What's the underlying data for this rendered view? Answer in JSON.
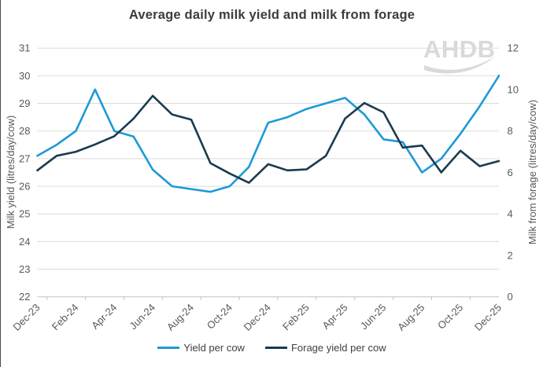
{
  "title": "Average daily milk yield and milk from forage",
  "watermark": {
    "logo_text": "AHDB"
  },
  "colors": {
    "yield_line": "#1d9ad7",
    "forage_line": "#1b3a4f",
    "grid": "#dbdbdb",
    "axis_text": "#595959",
    "title_text": "#3c3c3c",
    "logo": "#d9d9d9"
  },
  "chart_data": {
    "type": "line",
    "title": "Average daily milk yield and milk from forage",
    "categories": [
      "Dec-23",
      "Jan-24",
      "Feb-24",
      "Mar-24",
      "Apr-24",
      "May-24",
      "Jun-24",
      "Jul-24",
      "Aug-24",
      "Sep-24",
      "Oct-24",
      "Nov-24",
      "Dec-24",
      "Jan-25",
      "Feb-25",
      "Mar-25",
      "Apr-25",
      "May-25",
      "Jun-25",
      "Jul-25",
      "Aug-25",
      "Sep-25",
      "Oct-25",
      "Nov-25",
      "Dec-25"
    ],
    "x_tick_labels": [
      "Dec-23",
      "Feb-24",
      "Apr-24",
      "Jun-24",
      "Aug-24",
      "Oct-24",
      "Dec-24",
      "Feb-25",
      "Apr-25",
      "Jun-25",
      "Aug-25",
      "Oct-25",
      "Dec-25"
    ],
    "series": [
      {
        "name": "Yield per cow",
        "axis": "left",
        "color": "#1d9ad7",
        "values": [
          27.1,
          27.5,
          28.0,
          29.5,
          28.0,
          27.8,
          26.6,
          26.0,
          25.9,
          25.8,
          26.0,
          26.7,
          28.3,
          28.5,
          28.8,
          29.0,
          29.2,
          28.6,
          27.7,
          27.6,
          26.5,
          27.0,
          27.9,
          28.9,
          30.0
        ]
      },
      {
        "name": "Forage yield per cow",
        "axis": "right",
        "color": "#1b3a4f",
        "values": [
          6.1,
          6.8,
          7.0,
          7.35,
          7.75,
          8.6,
          9.7,
          8.8,
          8.55,
          6.45,
          5.95,
          5.5,
          6.4,
          6.1,
          6.15,
          6.8,
          8.6,
          9.35,
          8.9,
          7.2,
          7.3,
          6.0,
          7.05,
          6.3,
          6.55
        ]
      }
    ],
    "left_axis": {
      "title": "Milk yield (litres/day/cow)",
      "min": 22,
      "max": 31,
      "tick_step": 1,
      "ticks": [
        22,
        23,
        24,
        25,
        26,
        27,
        28,
        29,
        30,
        31
      ]
    },
    "right_axis": {
      "title": "Milk from forage (litres/day/cow)",
      "min": 0,
      "max": 12,
      "tick_step": 2,
      "ticks": [
        0,
        2,
        4,
        6,
        8,
        10,
        12
      ]
    },
    "grid": true,
    "legend_position": "bottom"
  }
}
